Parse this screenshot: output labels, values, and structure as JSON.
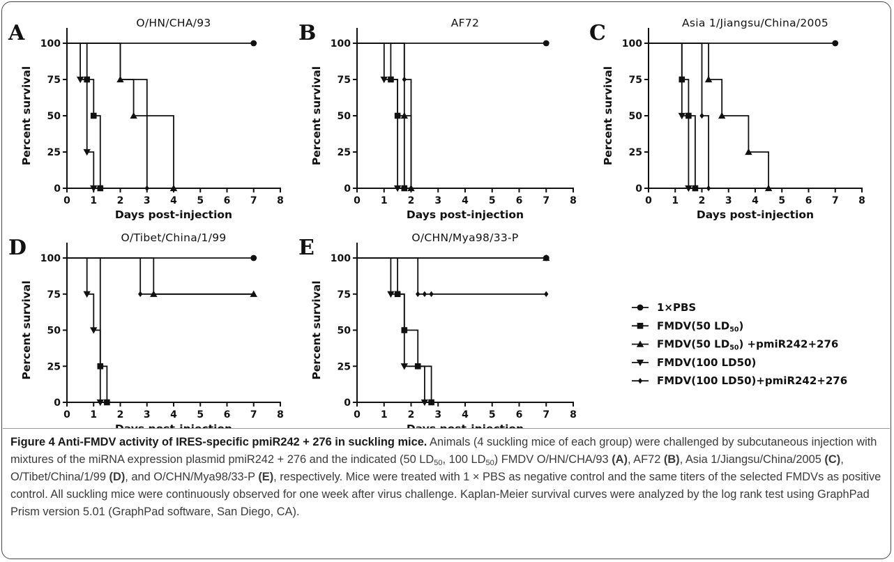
{
  "legend": {
    "entries": [
      {
        "marker": "circle",
        "label": "1×PBS"
      },
      {
        "marker": "square",
        "label": "FMDV(50 LD",
        "sub": "50",
        "suffix": ")"
      },
      {
        "marker": "triangle-up",
        "label": "FMDV(50 LD",
        "sub": "50",
        "suffix": ")  +pmiR242+276"
      },
      {
        "marker": "triangle-down",
        "label": "FMDV(100 LD50)"
      },
      {
        "marker": "diamond",
        "label": "FMDV(100 LD50)+pmiR242+276"
      }
    ]
  },
  "chart_data": [
    {
      "type": "line",
      "panel_letter": "A",
      "title": "O/HN/CHA/93",
      "xlabel": "Days post-injection",
      "ylabel": "Percent survival",
      "xlim": [
        0,
        8
      ],
      "ylim": [
        0,
        100
      ],
      "xticks": [
        0,
        1,
        2,
        3,
        4,
        5,
        6,
        7,
        8
      ],
      "yticks": [
        0,
        25,
        50,
        75,
        100
      ],
      "series": [
        {
          "marker": "circle",
          "steps": [
            [
              0,
              100
            ],
            [
              7,
              100
            ]
          ],
          "markers": [
            [
              7,
              100
            ]
          ]
        },
        {
          "marker": "square",
          "steps": [
            [
              0,
              100
            ],
            [
              0.75,
              100
            ],
            [
              0.75,
              75
            ],
            [
              1,
              75
            ],
            [
              1,
              50
            ],
            [
              1.25,
              50
            ],
            [
              1.25,
              0
            ]
          ],
          "markers": [
            [
              0.75,
              75
            ],
            [
              1,
              50
            ],
            [
              1.25,
              0
            ]
          ]
        },
        {
          "marker": "triangle-up",
          "steps": [
            [
              0,
              100
            ],
            [
              2,
              100
            ],
            [
              2,
              75
            ],
            [
              2.5,
              75
            ],
            [
              2.5,
              50
            ],
            [
              4,
              50
            ],
            [
              4,
              0
            ]
          ],
          "markers": [
            [
              2,
              75
            ],
            [
              2.5,
              50
            ],
            [
              4,
              0
            ]
          ]
        },
        {
          "marker": "triangle-down",
          "steps": [
            [
              0,
              100
            ],
            [
              0.5,
              100
            ],
            [
              0.5,
              75
            ],
            [
              0.75,
              75
            ],
            [
              0.75,
              25
            ],
            [
              1,
              25
            ],
            [
              1,
              0
            ]
          ],
          "markers": [
            [
              0.5,
              75
            ],
            [
              0.75,
              25
            ],
            [
              1,
              0
            ]
          ]
        },
        {
          "marker": "diamond",
          "steps": [
            [
              0,
              100
            ],
            [
              2,
              100
            ],
            [
              2,
              75
            ],
            [
              3,
              75
            ],
            [
              3,
              0
            ]
          ],
          "markers": [
            [
              3,
              0
            ]
          ]
        }
      ]
    },
    {
      "type": "line",
      "panel_letter": "B",
      "title": "AF72",
      "xlabel": "Days post-injection",
      "ylabel": "Percent survival",
      "xlim": [
        0,
        8
      ],
      "ylim": [
        0,
        100
      ],
      "xticks": [
        0,
        1,
        2,
        3,
        4,
        5,
        6,
        7,
        8
      ],
      "yticks": [
        0,
        25,
        50,
        75,
        100
      ],
      "series": [
        {
          "marker": "circle",
          "steps": [
            [
              0,
              100
            ],
            [
              7,
              100
            ]
          ],
          "markers": [
            [
              7,
              100
            ]
          ]
        },
        {
          "marker": "square",
          "steps": [
            [
              0,
              100
            ],
            [
              1.25,
              100
            ],
            [
              1.25,
              75
            ],
            [
              1.5,
              75
            ],
            [
              1.5,
              50
            ],
            [
              1.75,
              50
            ],
            [
              1.75,
              0
            ]
          ],
          "markers": [
            [
              1.25,
              75
            ],
            [
              1.5,
              50
            ],
            [
              1.75,
              0
            ]
          ]
        },
        {
          "marker": "triangle-up",
          "steps": [
            [
              0,
              100
            ],
            [
              1.75,
              100
            ],
            [
              1.75,
              50
            ],
            [
              2,
              50
            ],
            [
              2,
              0
            ]
          ],
          "markers": [
            [
              1.75,
              50
            ],
            [
              2,
              0
            ]
          ]
        },
        {
          "marker": "triangle-down",
          "steps": [
            [
              0,
              100
            ],
            [
              1,
              100
            ],
            [
              1,
              75
            ],
            [
              1.5,
              75
            ],
            [
              1.5,
              0
            ]
          ],
          "markers": [
            [
              1,
              75
            ],
            [
              1.5,
              0
            ]
          ]
        },
        {
          "marker": "diamond",
          "steps": [
            [
              0,
              100
            ],
            [
              1.75,
              100
            ],
            [
              1.75,
              75
            ],
            [
              2,
              75
            ],
            [
              2,
              0
            ]
          ],
          "markers": [
            [
              1.75,
              75
            ],
            [
              2,
              0
            ]
          ]
        }
      ]
    },
    {
      "type": "line",
      "panel_letter": "C",
      "title": "Asia 1/Jiangsu/China/2005",
      "xlabel": "Days post-injection",
      "ylabel": "Percent survival",
      "xlim": [
        0,
        8
      ],
      "ylim": [
        0,
        100
      ],
      "xticks": [
        0,
        1,
        2,
        3,
        4,
        5,
        6,
        7,
        8
      ],
      "yticks": [
        0,
        25,
        50,
        75,
        100
      ],
      "series": [
        {
          "marker": "circle",
          "steps": [
            [
              0,
              100
            ],
            [
              7,
              100
            ]
          ],
          "markers": [
            [
              7,
              100
            ]
          ]
        },
        {
          "marker": "square",
          "steps": [
            [
              0,
              100
            ],
            [
              1.25,
              100
            ],
            [
              1.25,
              75
            ],
            [
              1.5,
              75
            ],
            [
              1.5,
              50
            ],
            [
              1.75,
              50
            ],
            [
              1.75,
              0
            ]
          ],
          "markers": [
            [
              1.25,
              75
            ],
            [
              1.5,
              50
            ],
            [
              1.75,
              0
            ]
          ]
        },
        {
          "marker": "triangle-up",
          "steps": [
            [
              0,
              100
            ],
            [
              2.25,
              100
            ],
            [
              2.25,
              75
            ],
            [
              2.75,
              75
            ],
            [
              2.75,
              50
            ],
            [
              3.75,
              50
            ],
            [
              3.75,
              25
            ],
            [
              4.5,
              25
            ],
            [
              4.5,
              0
            ]
          ],
          "markers": [
            [
              2.25,
              75
            ],
            [
              2.75,
              50
            ],
            [
              3.75,
              25
            ],
            [
              4.5,
              0
            ]
          ]
        },
        {
          "marker": "triangle-down",
          "steps": [
            [
              0,
              100
            ],
            [
              1.25,
              100
            ],
            [
              1.25,
              50
            ],
            [
              1.5,
              50
            ],
            [
              1.5,
              0
            ]
          ],
          "markers": [
            [
              1.25,
              50
            ],
            [
              1.5,
              0
            ]
          ]
        },
        {
          "marker": "diamond",
          "steps": [
            [
              0,
              100
            ],
            [
              2,
              100
            ],
            [
              2,
              50
            ],
            [
              2.25,
              50
            ],
            [
              2.25,
              0
            ]
          ],
          "markers": [
            [
              2,
              50
            ],
            [
              2.25,
              0
            ]
          ]
        }
      ]
    },
    {
      "type": "line",
      "panel_letter": "D",
      "title": "O/Tibet/China/1/99",
      "xlabel": "Days post-injection",
      "ylabel": "Percent survival",
      "xlim": [
        0,
        8
      ],
      "ylim": [
        0,
        100
      ],
      "xticks": [
        0,
        1,
        2,
        3,
        4,
        5,
        6,
        7,
        8
      ],
      "yticks": [
        0,
        25,
        50,
        75,
        100
      ],
      "series": [
        {
          "marker": "circle",
          "steps": [
            [
              0,
              100
            ],
            [
              7,
              100
            ]
          ],
          "markers": [
            [
              7,
              100
            ]
          ]
        },
        {
          "marker": "square",
          "steps": [
            [
              0,
              100
            ],
            [
              1.25,
              100
            ],
            [
              1.25,
              25
            ],
            [
              1.5,
              25
            ],
            [
              1.5,
              0
            ]
          ],
          "markers": [
            [
              1.25,
              25
            ],
            [
              1.5,
              0
            ]
          ]
        },
        {
          "marker": "triangle-up",
          "steps": [
            [
              0,
              100
            ],
            [
              3.25,
              100
            ],
            [
              3.25,
              75
            ],
            [
              7,
              75
            ]
          ],
          "markers": [
            [
              3.25,
              75
            ],
            [
              7,
              75
            ]
          ]
        },
        {
          "marker": "triangle-down",
          "steps": [
            [
              0,
              100
            ],
            [
              0.75,
              100
            ],
            [
              0.75,
              75
            ],
            [
              1,
              75
            ],
            [
              1,
              50
            ],
            [
              1.25,
              50
            ],
            [
              1.25,
              0
            ]
          ],
          "markers": [
            [
              0.75,
              75
            ],
            [
              1,
              50
            ],
            [
              1.25,
              0
            ]
          ]
        },
        {
          "marker": "diamond",
          "steps": [
            [
              0,
              100
            ],
            [
              2.75,
              100
            ],
            [
              2.75,
              75
            ],
            [
              7,
              75
            ]
          ],
          "markers": [
            [
              2.75,
              75
            ]
          ]
        }
      ]
    },
    {
      "type": "line",
      "panel_letter": "E",
      "title": "O/CHN/Mya98/33-P",
      "xlabel": "Days post-injection",
      "ylabel": "Percent survival",
      "xlim": [
        0,
        8
      ],
      "ylim": [
        0,
        100
      ],
      "xticks": [
        0,
        1,
        2,
        3,
        4,
        5,
        6,
        7,
        8
      ],
      "yticks": [
        0,
        25,
        50,
        75,
        100
      ],
      "series": [
        {
          "marker": "circle",
          "steps": [
            [
              0,
              100
            ],
            [
              7,
              100
            ]
          ],
          "markers": [
            [
              7,
              100
            ]
          ]
        },
        {
          "marker": "square",
          "steps": [
            [
              0,
              100
            ],
            [
              1.5,
              100
            ],
            [
              1.5,
              75
            ],
            [
              1.75,
              75
            ],
            [
              1.75,
              50
            ],
            [
              2.25,
              50
            ],
            [
              2.25,
              25
            ],
            [
              2.75,
              25
            ],
            [
              2.75,
              0
            ]
          ],
          "markers": [
            [
              1.5,
              75
            ],
            [
              1.75,
              50
            ],
            [
              2.25,
              25
            ],
            [
              2.75,
              0
            ]
          ]
        },
        {
          "marker": "triangle-up",
          "steps": [
            [
              0,
              100
            ],
            [
              7,
              100
            ]
          ],
          "markers": [
            [
              7,
              100
            ]
          ]
        },
        {
          "marker": "triangle-down",
          "steps": [
            [
              0,
              100
            ],
            [
              1.25,
              100
            ],
            [
              1.25,
              75
            ],
            [
              1.75,
              75
            ],
            [
              1.75,
              25
            ],
            [
              2.5,
              25
            ],
            [
              2.5,
              0
            ]
          ],
          "markers": [
            [
              1.25,
              75
            ],
            [
              1.75,
              25
            ],
            [
              2.5,
              0
            ]
          ]
        },
        {
          "marker": "diamond",
          "steps": [
            [
              0,
              100
            ],
            [
              2.25,
              100
            ],
            [
              2.25,
              75
            ],
            [
              7,
              75
            ]
          ],
          "markers": [
            [
              2.25,
              75
            ],
            [
              2.5,
              75
            ],
            [
              2.75,
              75
            ],
            [
              7,
              75
            ]
          ]
        }
      ]
    }
  ],
  "caption": {
    "head": "Figure 4 Anti-FMDV activity of IRES-specific pmiR242 + 276 in suckling mice.",
    "p1": " Animals (4 suckling mice of each group) were challenged by subcutaneous injection with mixtures of the miRNA expression plasmid pmiR242 + 276 and the indicated (50 LD",
    "sub1": "50",
    "p2": ", 100 LD",
    "sub2": "50",
    "p3": ") FMDV O/HN/CHA/93 ",
    "refA": "(A)",
    "p4": ", AF72 ",
    "refB": "(B)",
    "p5": ", Asia 1/Jiangsu/China/2005 ",
    "refC": "(C)",
    "p6": ", O/Tibet/China/1/99 ",
    "refD": "(D)",
    "p7": ", and O/CHN/Mya98/33-P ",
    "refE": "(E)",
    "p8": ", respectively. Mice were treated with 1 × PBS as negative control and the same titers of the selected FMDVs as positive control. All suckling mice were continuously observed for one week after virus challenge. Kaplan-Meier survival curves were analyzed by the log rank test using GraphPad Prism version 5.01 (GraphPad software, San Diego, CA)."
  }
}
